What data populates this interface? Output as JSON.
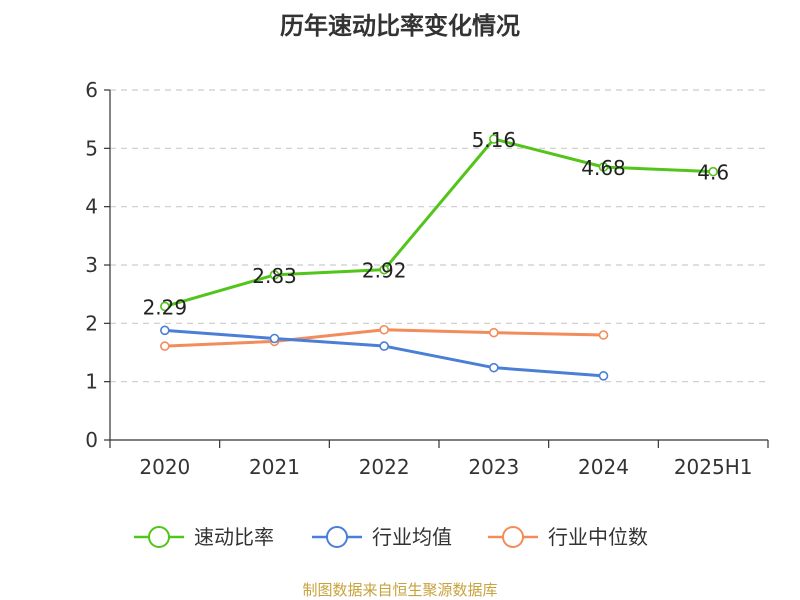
{
  "chart_data": {
    "type": "line",
    "title": "历年速动比率变化情况",
    "categories": [
      "2020",
      "2021",
      "2022",
      "2023",
      "2024",
      "2025H1"
    ],
    "ylim": [
      0,
      6
    ],
    "yticks": [
      "0",
      "1",
      "2",
      "3",
      "4",
      "5",
      "6"
    ],
    "grid": true,
    "legend_position": "bottom",
    "series": [
      {
        "name": "速动比率",
        "color": "#52c41a",
        "values": [
          2.29,
          2.83,
          2.92,
          5.16,
          4.68,
          4.6
        ],
        "labels": [
          "2.29",
          "2.83",
          "2.92",
          "5.16",
          "4.68",
          "4.6"
        ]
      },
      {
        "name": "行业均值",
        "color": "#4a7fd8",
        "values": [
          1.88,
          1.74,
          1.61,
          1.24,
          1.1,
          null
        ]
      },
      {
        "name": "行业中位数",
        "color": "#f28c5b",
        "values": [
          1.61,
          1.69,
          1.89,
          1.84,
          1.8,
          null
        ]
      }
    ]
  },
  "source_text": "制图数据来自恒生聚源数据库"
}
